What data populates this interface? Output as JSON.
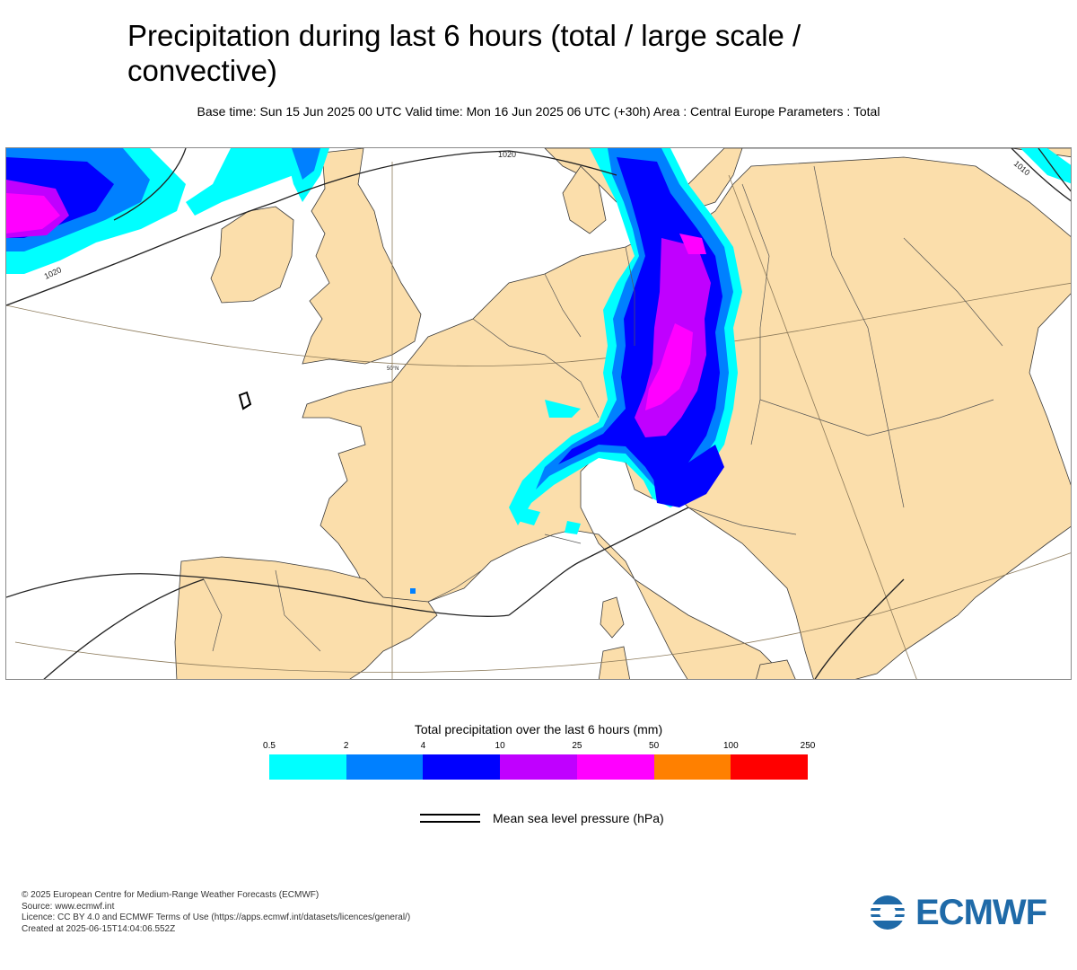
{
  "header": {
    "title": "Precipitation during last 6 hours (total / large scale / convective)",
    "subtitle": "Base time: Sun 15 Jun 2025 00 UTC Valid time: Mon 16 Jun 2025 06 UTC (+30h) Area : Central Europe Parameters : Total"
  },
  "map": {
    "land_color": "#fbdeab",
    "sea_color": "#ffffff",
    "isobar_labels": [
      "1020",
      "1020",
      "1010"
    ],
    "latitude_label": "50°N"
  },
  "legend": {
    "title": "Total precipitation over the last 6 hours (mm)",
    "ticks": [
      "0.5",
      "2",
      "4",
      "10",
      "25",
      "50",
      "100",
      "250"
    ],
    "colors": [
      "#00ffff",
      "#0080ff",
      "#0000ff",
      "#c000ff",
      "#ff00ff",
      "#ff8000",
      "#ff0000"
    ],
    "isobar_label": "Mean sea level pressure (hPa)"
  },
  "footer": {
    "lines": [
      "© 2025 European Centre for Medium-Range Weather Forecasts (ECMWF)",
      "Source: www.ecmwf.int",
      "Licence: CC BY 4.0 and ECMWF Terms of Use (https://apps.ecmwf.int/datasets/licences/general/)",
      "Created at 2025-06-15T14:04:06.552Z"
    ],
    "logo_text": "ECMWF",
    "logo_color": "#1f6aa8"
  }
}
